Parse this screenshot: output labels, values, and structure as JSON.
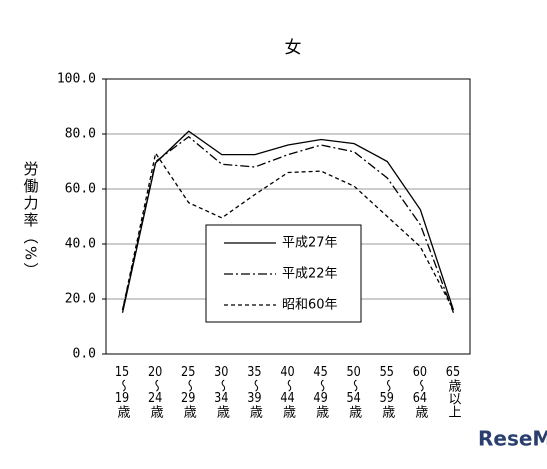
{
  "chart_data": {
    "type": "line",
    "title": "女",
    "y_label": "労働力率（%）",
    "categories": [
      "15～19歳",
      "20～24歳",
      "25～29歳",
      "30～34歳",
      "35～39歳",
      "40～44歳",
      "45～49歳",
      "50～54歳",
      "55～59歳",
      "60～64歳",
      "65歳以上"
    ],
    "series": [
      {
        "name": "平成27年",
        "color": "#000000",
        "dash": "solid",
        "values": [
          15,
          69.5,
          81,
          72.5,
          72.5,
          76,
          78,
          76.5,
          70,
          52.5,
          16
        ]
      },
      {
        "name": "平成22年",
        "color": "#000000",
        "dash": "dashdot",
        "values": [
          16,
          70,
          79,
          69,
          68,
          72.5,
          76,
          73.5,
          64,
          47,
          15
        ]
      },
      {
        "name": "昭和60年",
        "color": "#000000",
        "dash": "dashed",
        "values": [
          16,
          73,
          55,
          49.5,
          58,
          66,
          66.5,
          61,
          50,
          39,
          16
        ]
      }
    ],
    "ylim": [
      0,
      100
    ],
    "yticks": [
      {
        "value": 0,
        "label": "0.0"
      },
      {
        "value": 20,
        "label": "20.0"
      },
      {
        "value": 40,
        "label": "40.0"
      },
      {
        "value": 60,
        "label": "60.0"
      },
      {
        "value": 80,
        "label": "80.0"
      },
      {
        "value": 100,
        "label": "100.0"
      }
    ],
    "grid": true,
    "legend": "center",
    "watermark": "ReseMom"
  }
}
